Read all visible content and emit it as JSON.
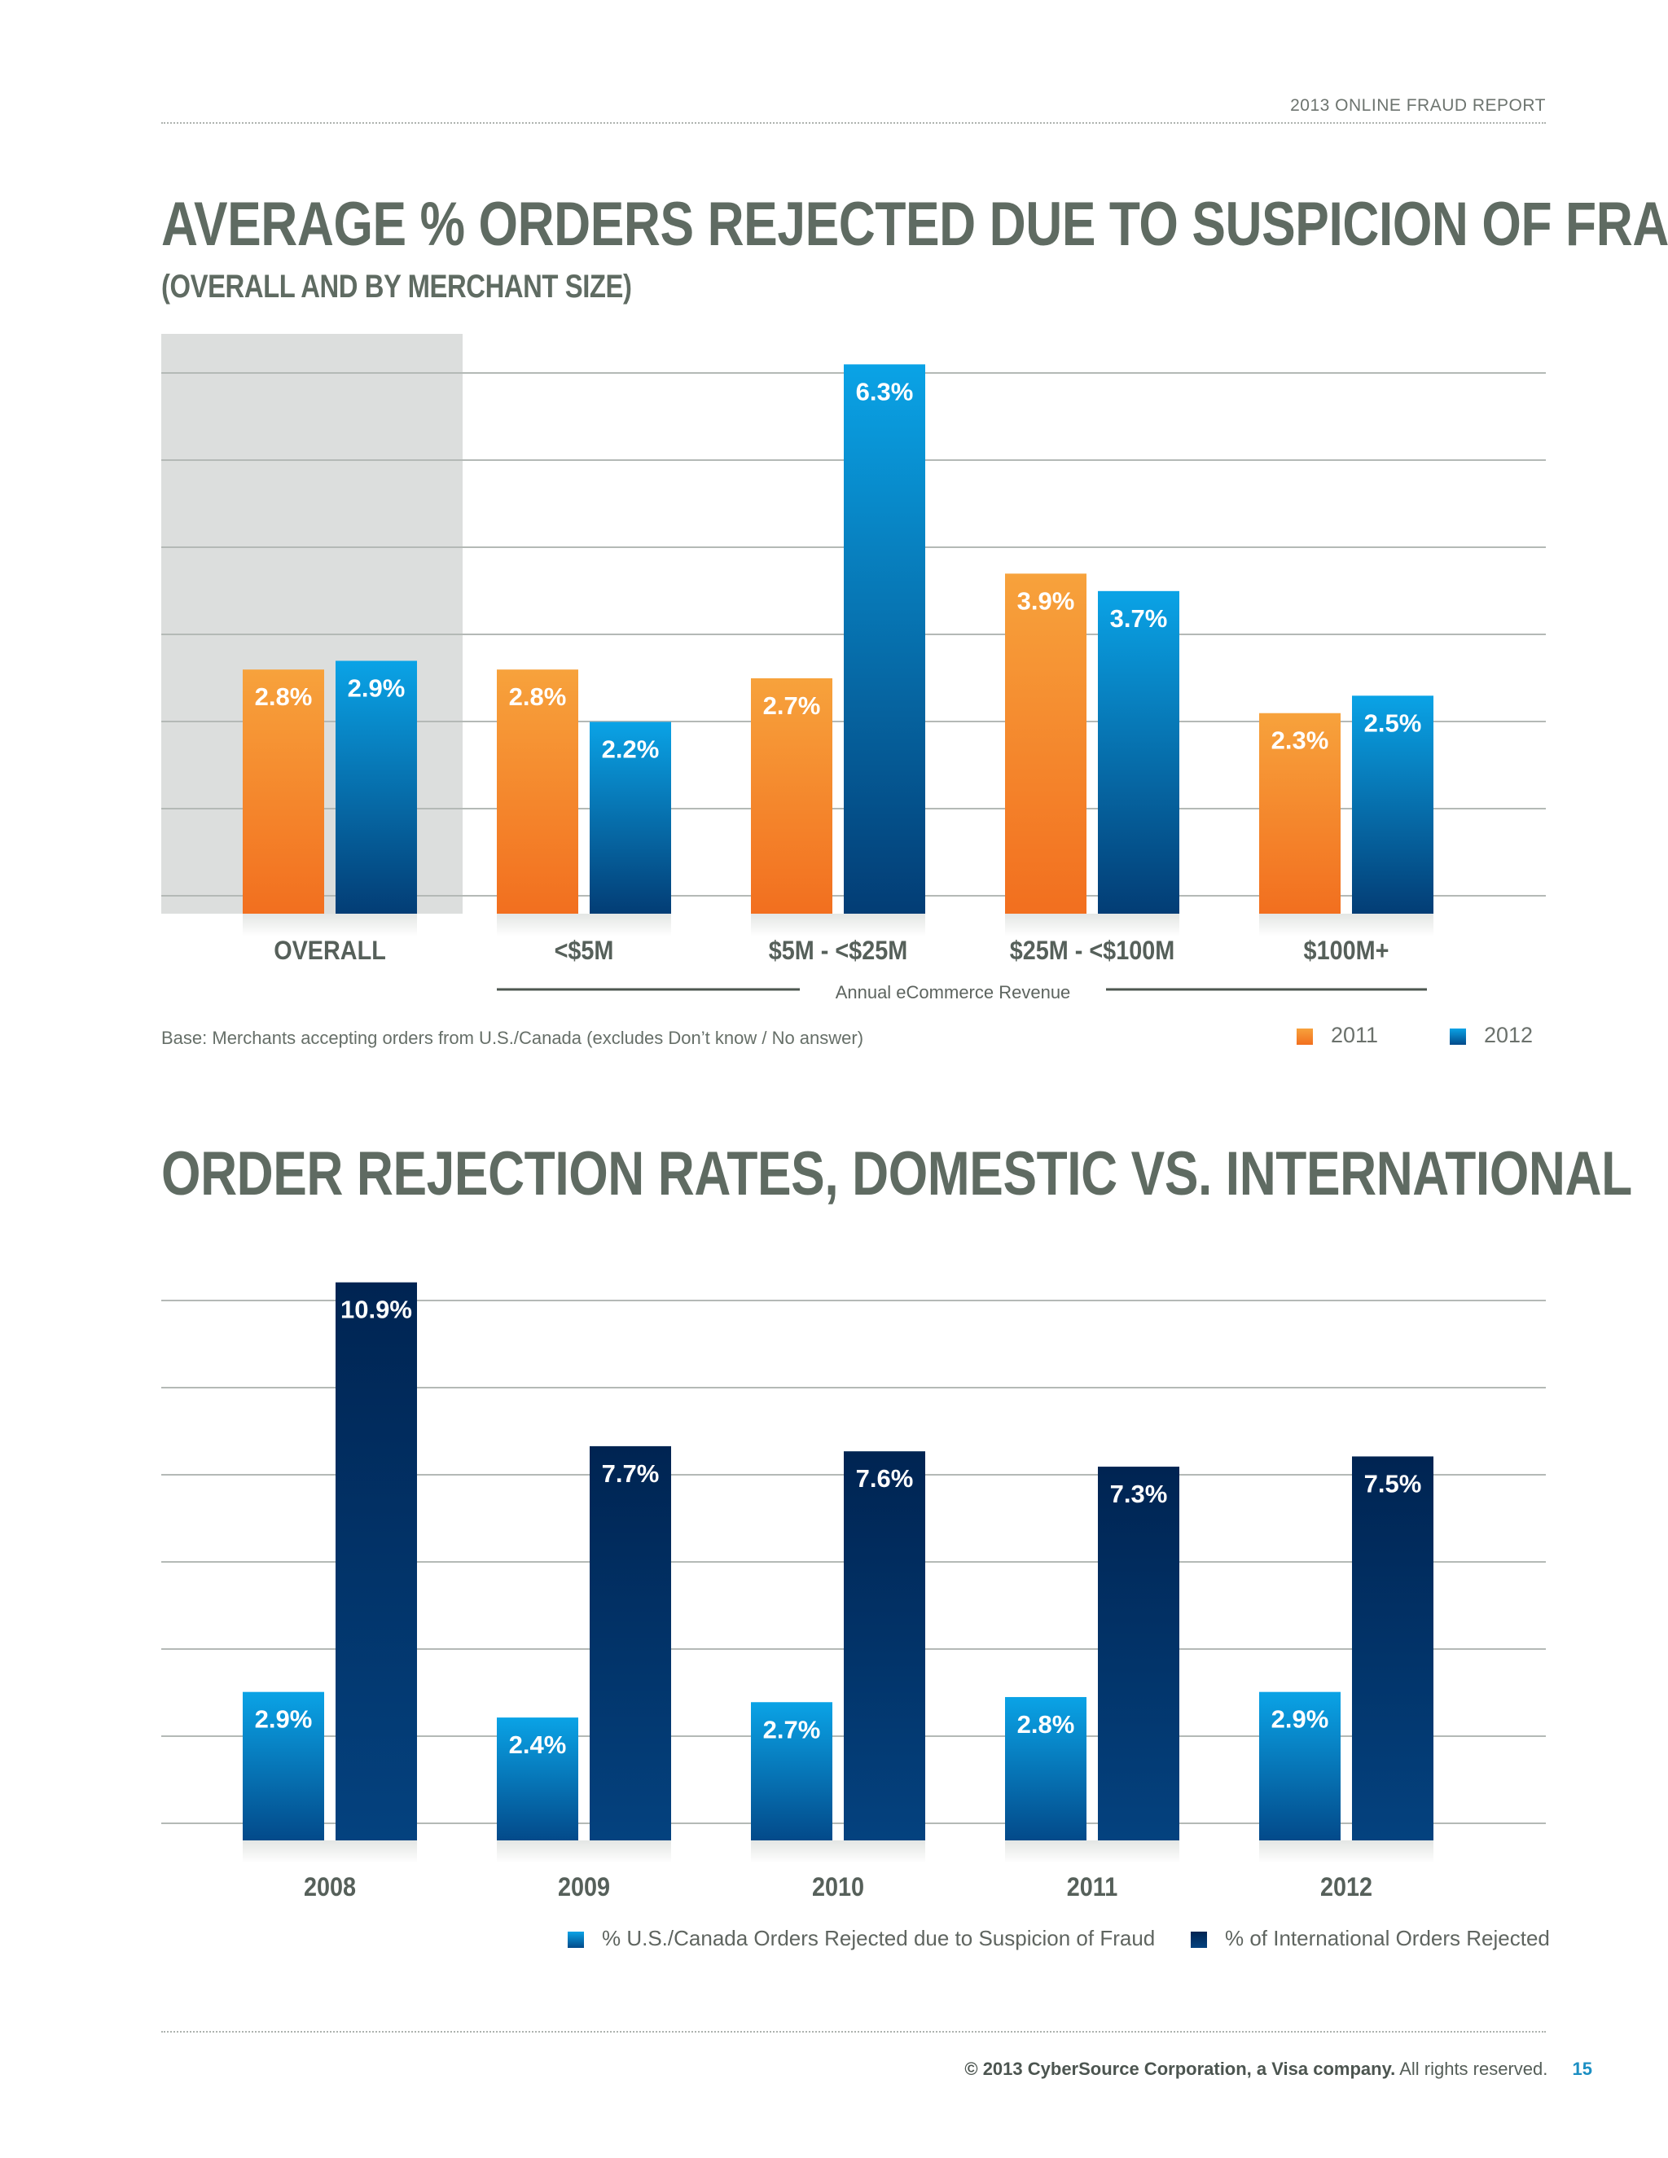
{
  "header": {
    "report_title": "2013 ONLINE FRAUD REPORT"
  },
  "charts": {
    "top": {
      "title": "AVERAGE % ORDERS REJECTED DUE TO SUSPICION OF FRAUD",
      "subtitle": "(OVERALL AND BY MERCHANT SIZE)",
      "xaxis_label": "Annual eCommerce Revenue",
      "base_note": "Base: Merchants accepting orders from U.S./Canada (excludes Don’t know / No answer)",
      "legend": [
        "2011",
        "2012"
      ]
    },
    "bottom": {
      "title": "ORDER REJECTION RATES, DOMESTIC VS. INTERNATIONAL",
      "legend": [
        "% U.S./Canada Orders Rejected due to Suspicion of Fraud",
        "% of International Orders Rejected"
      ]
    }
  },
  "chart_data": [
    {
      "type": "bar",
      "title": "AVERAGE % ORDERS REJECTED DUE TO SUSPICION OF FRAUD",
      "subtitle": "(OVERALL AND BY MERCHANT SIZE)",
      "xlabel": "Annual eCommerce Revenue",
      "categories": [
        "OVERALL",
        "<$5M",
        "$5M - <$25M",
        "$25M - <$100M",
        "$100M+"
      ],
      "series": [
        {
          "name": "2011",
          "values": [
            2.8,
            2.8,
            2.7,
            3.9,
            2.3
          ],
          "labels": [
            "2.8%",
            "2.8%",
            "2.7%",
            "3.9%",
            "2.3%"
          ]
        },
        {
          "name": "2012",
          "values": [
            2.9,
            2.2,
            6.3,
            3.7,
            2.5
          ],
          "labels": [
            "2.9%",
            "2.2%",
            "6.3%",
            "3.7%",
            "2.5%"
          ]
        }
      ],
      "ylim": [
        0,
        6.5
      ],
      "grid": true,
      "highlighted_category": "OVERALL",
      "colors": {
        "2011": "#f47b20",
        "2012": "#0a9ee0"
      }
    },
    {
      "type": "bar",
      "title": "ORDER REJECTION RATES, DOMESTIC VS. INTERNATIONAL",
      "categories": [
        "2008",
        "2009",
        "2010",
        "2011",
        "2012"
      ],
      "series": [
        {
          "name": "% U.S./Canada Orders Rejected due to Suspicion of Fraud",
          "values": [
            2.9,
            2.4,
            2.7,
            2.8,
            2.9
          ],
          "labels": [
            "2.9%",
            "2.4%",
            "2.7%",
            "2.8%",
            "2.9%"
          ]
        },
        {
          "name": "% of International Orders Rejected",
          "values": [
            10.9,
            7.7,
            7.6,
            7.3,
            7.5
          ],
          "labels": [
            "10.9%",
            "7.7%",
            "7.6%",
            "7.3%",
            "7.5%"
          ]
        }
      ],
      "ylim": [
        0,
        11.5
      ],
      "grid": true,
      "colors": {
        "domestic": "#0a9ee0",
        "international": "#002d5e"
      }
    }
  ],
  "footer": {
    "copyright": "© 2013 CyberSource Corporation, a Visa company.",
    "rights": "All rights reserved.",
    "page_number": "15"
  }
}
